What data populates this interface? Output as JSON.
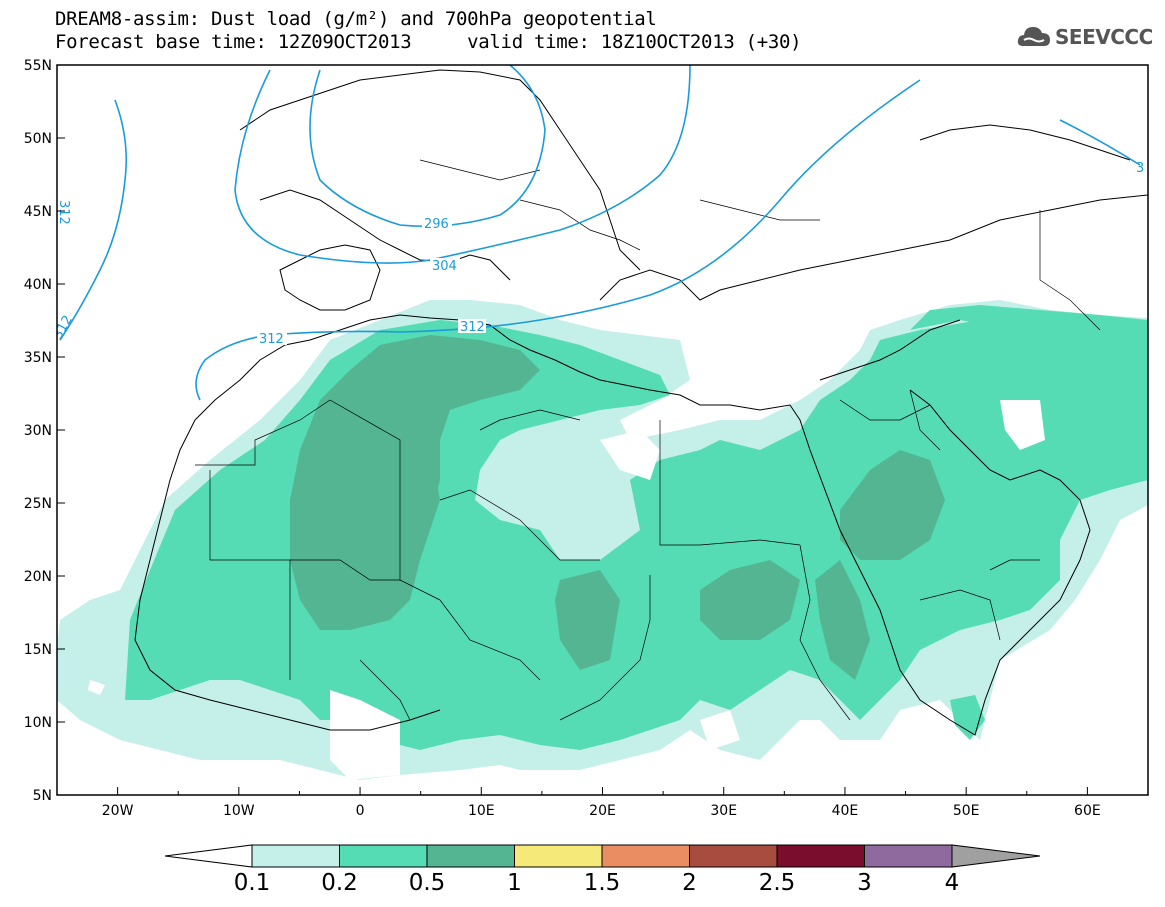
{
  "title": {
    "line1": "DREAM8-assim: Dust load (g/m²) and 700hPa geopotential",
    "line2": "Forecast base time: 12Z09OCT2013     valid time: 18Z10OCT2013 (+30)"
  },
  "logo": {
    "text": "SEEVCCC",
    "icon": "cloud-icon"
  },
  "axes": {
    "lat_labels": [
      "55N",
      "50N",
      "45N",
      "40N",
      "35N",
      "30N",
      "25N",
      "20N",
      "15N",
      "10N",
      "5N"
    ],
    "lon_labels": [
      "20W",
      "10W",
      "0",
      "10E",
      "20E",
      "30E",
      "40E",
      "50E",
      "60E"
    ],
    "lat_range": [
      5,
      55
    ],
    "lon_range": [
      -25,
      65
    ]
  },
  "contours": {
    "geopotential_labels": [
      "296",
      "304",
      "312",
      "312",
      "312",
      "312",
      "3"
    ]
  },
  "colorbar": {
    "levels": [
      "0.1",
      "0.2",
      "0.5",
      "1",
      "1.5",
      "2",
      "2.5",
      "3",
      "4"
    ],
    "colors": [
      "#c5efe9",
      "#55dcb4",
      "#54b592",
      "#f5e97a",
      "#ea8d63",
      "#a84c40",
      "#7a0c2e",
      "#8f6a9f"
    ],
    "extend_low_color": "#ffffff",
    "extend_high_color": "#a0a0a0"
  }
}
